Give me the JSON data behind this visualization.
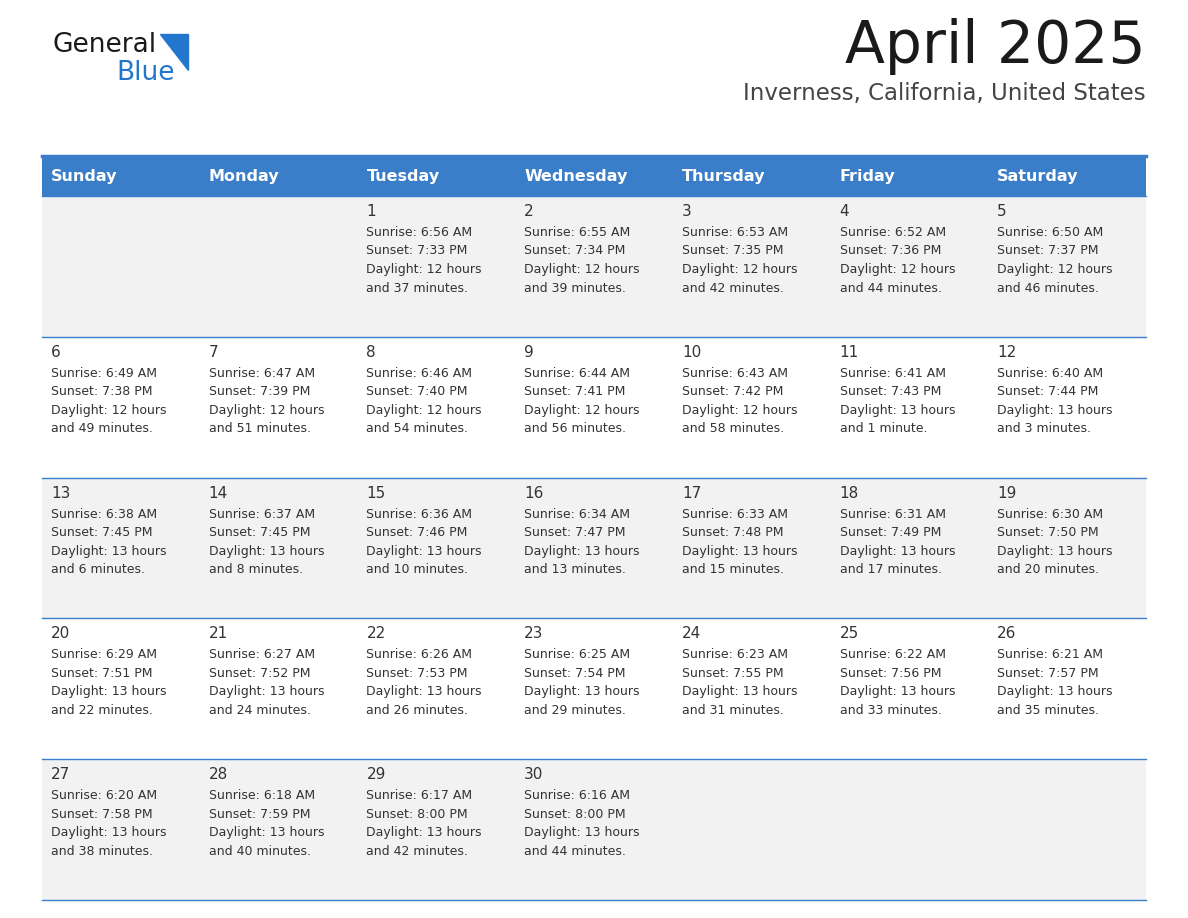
{
  "title": "April 2025",
  "subtitle": "Inverness, California, United States",
  "days_of_week": [
    "Sunday",
    "Monday",
    "Tuesday",
    "Wednesday",
    "Thursday",
    "Friday",
    "Saturday"
  ],
  "header_bg": "#3A7DC9",
  "header_text_color": "#FFFFFF",
  "row_bg_odd": "#F2F2F2",
  "row_bg_even": "#FFFFFF",
  "separator_color": "#3A7DC9",
  "text_color": "#333333",
  "title_color": "#1a1a1a",
  "subtitle_color": "#444444",
  "logo_general_color": "#1a1a1a",
  "logo_blue_color": "#2277CC",
  "calendar_data": [
    [
      {
        "day": "",
        "sunrise": "",
        "sunset": "",
        "daylight": ""
      },
      {
        "day": "",
        "sunrise": "",
        "sunset": "",
        "daylight": ""
      },
      {
        "day": "1",
        "sunrise": "6:56 AM",
        "sunset": "7:33 PM",
        "daylight": "12 hours and 37 minutes."
      },
      {
        "day": "2",
        "sunrise": "6:55 AM",
        "sunset": "7:34 PM",
        "daylight": "12 hours and 39 minutes."
      },
      {
        "day": "3",
        "sunrise": "6:53 AM",
        "sunset": "7:35 PM",
        "daylight": "12 hours and 42 minutes."
      },
      {
        "day": "4",
        "sunrise": "6:52 AM",
        "sunset": "7:36 PM",
        "daylight": "12 hours and 44 minutes."
      },
      {
        "day": "5",
        "sunrise": "6:50 AM",
        "sunset": "7:37 PM",
        "daylight": "12 hours and 46 minutes."
      }
    ],
    [
      {
        "day": "6",
        "sunrise": "6:49 AM",
        "sunset": "7:38 PM",
        "daylight": "12 hours and 49 minutes."
      },
      {
        "day": "7",
        "sunrise": "6:47 AM",
        "sunset": "7:39 PM",
        "daylight": "12 hours and 51 minutes."
      },
      {
        "day": "8",
        "sunrise": "6:46 AM",
        "sunset": "7:40 PM",
        "daylight": "12 hours and 54 minutes."
      },
      {
        "day": "9",
        "sunrise": "6:44 AM",
        "sunset": "7:41 PM",
        "daylight": "12 hours and 56 minutes."
      },
      {
        "day": "10",
        "sunrise": "6:43 AM",
        "sunset": "7:42 PM",
        "daylight": "12 hours and 58 minutes."
      },
      {
        "day": "11",
        "sunrise": "6:41 AM",
        "sunset": "7:43 PM",
        "daylight": "13 hours and 1 minute."
      },
      {
        "day": "12",
        "sunrise": "6:40 AM",
        "sunset": "7:44 PM",
        "daylight": "13 hours and 3 minutes."
      }
    ],
    [
      {
        "day": "13",
        "sunrise": "6:38 AM",
        "sunset": "7:45 PM",
        "daylight": "13 hours and 6 minutes."
      },
      {
        "day": "14",
        "sunrise": "6:37 AM",
        "sunset": "7:45 PM",
        "daylight": "13 hours and 8 minutes."
      },
      {
        "day": "15",
        "sunrise": "6:36 AM",
        "sunset": "7:46 PM",
        "daylight": "13 hours and 10 minutes."
      },
      {
        "day": "16",
        "sunrise": "6:34 AM",
        "sunset": "7:47 PM",
        "daylight": "13 hours and 13 minutes."
      },
      {
        "day": "17",
        "sunrise": "6:33 AM",
        "sunset": "7:48 PM",
        "daylight": "13 hours and 15 minutes."
      },
      {
        "day": "18",
        "sunrise": "6:31 AM",
        "sunset": "7:49 PM",
        "daylight": "13 hours and 17 minutes."
      },
      {
        "day": "19",
        "sunrise": "6:30 AM",
        "sunset": "7:50 PM",
        "daylight": "13 hours and 20 minutes."
      }
    ],
    [
      {
        "day": "20",
        "sunrise": "6:29 AM",
        "sunset": "7:51 PM",
        "daylight": "13 hours and 22 minutes."
      },
      {
        "day": "21",
        "sunrise": "6:27 AM",
        "sunset": "7:52 PM",
        "daylight": "13 hours and 24 minutes."
      },
      {
        "day": "22",
        "sunrise": "6:26 AM",
        "sunset": "7:53 PM",
        "daylight": "13 hours and 26 minutes."
      },
      {
        "day": "23",
        "sunrise": "6:25 AM",
        "sunset": "7:54 PM",
        "daylight": "13 hours and 29 minutes."
      },
      {
        "day": "24",
        "sunrise": "6:23 AM",
        "sunset": "7:55 PM",
        "daylight": "13 hours and 31 minutes."
      },
      {
        "day": "25",
        "sunrise": "6:22 AM",
        "sunset": "7:56 PM",
        "daylight": "13 hours and 33 minutes."
      },
      {
        "day": "26",
        "sunrise": "6:21 AM",
        "sunset": "7:57 PM",
        "daylight": "13 hours and 35 minutes."
      }
    ],
    [
      {
        "day": "27",
        "sunrise": "6:20 AM",
        "sunset": "7:58 PM",
        "daylight": "13 hours and 38 minutes."
      },
      {
        "day": "28",
        "sunrise": "6:18 AM",
        "sunset": "7:59 PM",
        "daylight": "13 hours and 40 minutes."
      },
      {
        "day": "29",
        "sunrise": "6:17 AM",
        "sunset": "8:00 PM",
        "daylight": "13 hours and 42 minutes."
      },
      {
        "day": "30",
        "sunrise": "6:16 AM",
        "sunset": "8:00 PM",
        "daylight": "13 hours and 44 minutes."
      },
      {
        "day": "",
        "sunrise": "",
        "sunset": "",
        "daylight": ""
      },
      {
        "day": "",
        "sunrise": "",
        "sunset": "",
        "daylight": ""
      },
      {
        "day": "",
        "sunrise": "",
        "sunset": "",
        "daylight": ""
      }
    ]
  ]
}
